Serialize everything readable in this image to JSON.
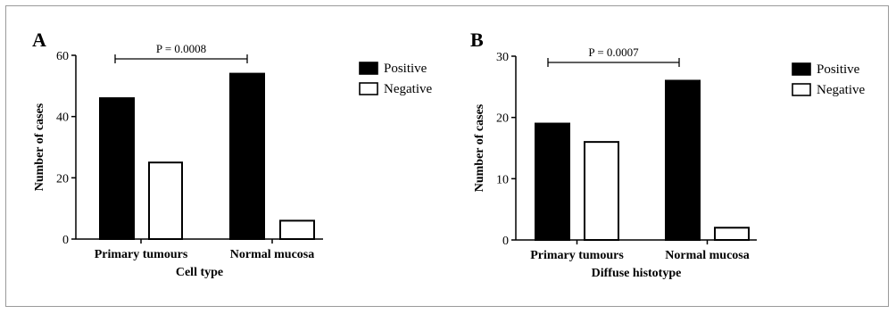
{
  "chart_data": [
    {
      "type": "bar",
      "panel": "A",
      "categories": [
        "Primary tumours",
        "Normal mucosa"
      ],
      "series": [
        {
          "name": "Positive",
          "values": [
            46,
            54
          ],
          "color": "#000000"
        },
        {
          "name": "Negative",
          "values": [
            25,
            6
          ],
          "color": "#ffffff"
        }
      ],
      "xlabel": "Cell type",
      "ylabel": "Number of cases",
      "ylim": [
        0,
        60
      ],
      "yticks": [
        0,
        20,
        40,
        60
      ],
      "annotation": "P = 0.0008",
      "legend": "right",
      "grid": false
    },
    {
      "type": "bar",
      "panel": "B",
      "categories": [
        "Primary tumours",
        "Normal mucosa"
      ],
      "series": [
        {
          "name": "Positive",
          "values": [
            19,
            26
          ],
          "color": "#000000"
        },
        {
          "name": "Negative",
          "values": [
            16,
            2
          ],
          "color": "#ffffff"
        }
      ],
      "xlabel": "Diffuse histotype",
      "ylabel": "Number of cases",
      "ylim": [
        0,
        30
      ],
      "yticks": [
        0,
        10,
        20,
        30
      ],
      "annotation": "P = 0.0007",
      "legend": "right",
      "grid": false
    }
  ]
}
